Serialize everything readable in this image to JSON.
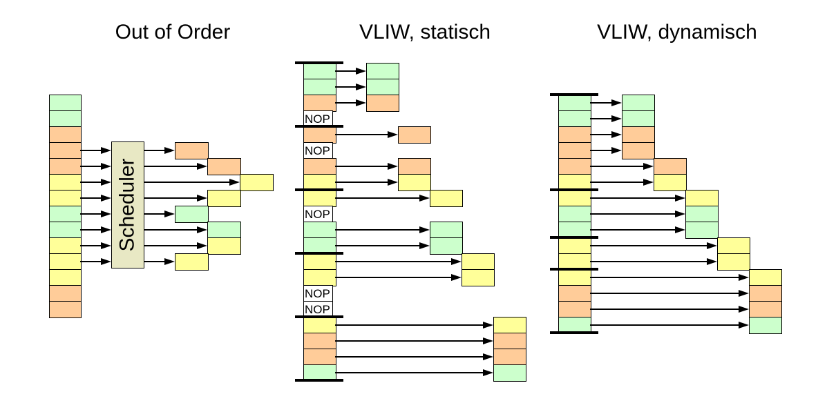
{
  "palette": {
    "green": "#ccffcc",
    "orange": "#ffcc99",
    "yellow": "#ffff99",
    "scheduler_fill": "#e8e8c4",
    "nop_fill": "#ffffff",
    "line": "#000000"
  },
  "out_of_order": {
    "title": "Out of Order",
    "scheduler_label": "Scheduler",
    "stack": [
      "green",
      "green",
      "orange",
      "orange",
      "orange",
      "yellow",
      "yellow",
      "green",
      "green",
      "yellow",
      "yellow",
      "yellow",
      "orange",
      "orange"
    ],
    "window_rows": [
      3,
      4,
      5,
      6,
      7,
      8,
      9,
      10
    ],
    "issue": [
      {
        "row": 3,
        "col": 0,
        "color": "orange"
      },
      {
        "row": 4,
        "col": 1,
        "color": "orange"
      },
      {
        "row": 5,
        "col": 2,
        "color": "yellow"
      },
      {
        "row": 6,
        "col": 1,
        "color": "yellow"
      },
      {
        "row": 7,
        "col": 0,
        "color": "green"
      },
      {
        "row": 8,
        "col": 1,
        "color": "green"
      },
      {
        "row": 9,
        "col": 1,
        "color": "yellow"
      },
      {
        "row": 10,
        "col": 0,
        "color": "yellow"
      }
    ]
  },
  "vliw_static": {
    "title": "VLIW, statisch",
    "nop_label": "NOP",
    "bundle_size": 4,
    "slots": [
      "green",
      "green",
      "orange",
      "NOP",
      "orange",
      "NOP",
      "orange",
      "yellow",
      "yellow",
      "NOP",
      "green",
      "green",
      "yellow",
      "yellow",
      "NOP",
      "NOP",
      "yellow",
      "orange",
      "orange",
      "green"
    ]
  },
  "vliw_dynamic": {
    "title": "VLIW, dynamisch",
    "stack": [
      "green",
      "green",
      "orange",
      "orange",
      "orange",
      "yellow",
      "yellow",
      "green",
      "green",
      "yellow",
      "yellow",
      "yellow",
      "orange",
      "orange",
      "green"
    ],
    "bundle_breaks": [
      0,
      6,
      9,
      11,
      15
    ],
    "issue_col": [
      0,
      0,
      0,
      0,
      1,
      1,
      2,
      2,
      2,
      3,
      3,
      4,
      4,
      4,
      4
    ]
  }
}
